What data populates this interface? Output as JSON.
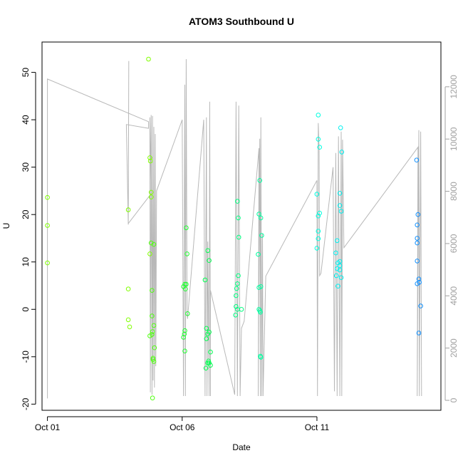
{
  "chart_data": {
    "type": "scatter",
    "title": "ATOM3 Southbound U",
    "xlabel": "Date",
    "ylabel": "U",
    "x_ticks": [
      "Oct 01",
      "Oct 06",
      "Oct 11"
    ],
    "x_tick_days": [
      1,
      6,
      11
    ],
    "xlim": [
      0.8,
      15.6
    ],
    "ylim": [
      -21.3,
      56.4
    ],
    "y_ticks": [
      -20,
      -10,
      0,
      10,
      20,
      30,
      40,
      50
    ],
    "y2_ticks": [
      0,
      2000,
      4000,
      6000,
      8000,
      10000,
      12000
    ],
    "y2_range": [
      -21,
      56.3
    ],
    "y2_to_y": {
      "scale": 0.005513,
      "offset": -19.2
    },
    "grid": false,
    "colors": {
      "green_early": "#80ff00",
      "green_mid": "#20ff20",
      "green_late": "#00ff60",
      "teal": "#00ffa0",
      "cyan": "#00ffe0",
      "sky": "#00e0ff",
      "blue": "#1090ff",
      "secondary_line": "#b8b8b8",
      "right_axis": "#a0a0a0"
    },
    "series": [
      {
        "color": "#80ff00",
        "points": [
          [
            1.0,
            23.6
          ],
          [
            1.0,
            17.7
          ],
          [
            1.0,
            9.8
          ],
          [
            4.0,
            21.0
          ],
          [
            4.0,
            4.3
          ],
          [
            4.0,
            -2.2
          ],
          [
            4.05,
            -3.7
          ],
          [
            4.75,
            52.8
          ],
          [
            4.8,
            32.0
          ],
          [
            4.82,
            31.3
          ],
          [
            4.85,
            24.7
          ],
          [
            4.85,
            23.7
          ],
          [
            4.8,
            11.7
          ]
        ]
      },
      {
        "color": "#50ff10",
        "points": [
          [
            4.85,
            14.0
          ],
          [
            4.95,
            13.7
          ],
          [
            4.88,
            4.0
          ],
          [
            4.88,
            -1.4
          ],
          [
            4.95,
            -3.4
          ],
          [
            4.9,
            -4.7
          ],
          [
            4.88,
            -5.3
          ],
          [
            4.8,
            -5.6
          ],
          [
            4.97,
            -8.1
          ],
          [
            4.92,
            -10.3
          ],
          [
            4.92,
            -10.6
          ],
          [
            4.95,
            -11.0
          ],
          [
            4.9,
            -18.7
          ]
        ]
      },
      {
        "color": "#20ff30",
        "points": [
          [
            6.15,
            17.2
          ],
          [
            6.18,
            11.7
          ],
          [
            6.1,
            5.3
          ],
          [
            6.15,
            5.3
          ],
          [
            6.05,
            4.8
          ],
          [
            6.12,
            4.3
          ],
          [
            6.2,
            -0.9
          ],
          [
            6.1,
            -4.5
          ],
          [
            6.08,
            -5.2
          ],
          [
            6.05,
            -5.9
          ],
          [
            6.1,
            -8.8
          ]
        ]
      },
      {
        "color": "#00ff50",
        "points": [
          [
            6.95,
            12.4
          ],
          [
            7.0,
            10.3
          ],
          [
            6.85,
            6.2
          ],
          [
            6.9,
            -4.0
          ],
          [
            7.0,
            -4.8
          ],
          [
            6.95,
            -5.2
          ],
          [
            6.9,
            -6.2
          ],
          [
            7.05,
            -9.0
          ],
          [
            6.98,
            -10.9
          ],
          [
            6.95,
            -11.3
          ],
          [
            7.0,
            -11.3
          ],
          [
            7.05,
            -11.8
          ],
          [
            6.88,
            -12.4
          ]
        ]
      },
      {
        "color": "#00ff80",
        "points": [
          [
            8.05,
            22.8
          ],
          [
            8.08,
            19.3
          ],
          [
            8.1,
            15.2
          ],
          [
            8.05,
            5.4
          ],
          [
            8.02,
            4.4
          ],
          [
            8.08,
            7.1
          ],
          [
            8.0,
            2.9
          ],
          [
            8.0,
            0.6
          ],
          [
            8.05,
            0.0
          ],
          [
            8.2,
            0.0
          ],
          [
            7.98,
            -1.2
          ]
        ]
      },
      {
        "color": "#00ffa0",
        "points": [
          [
            8.88,
            27.2
          ],
          [
            8.85,
            20.1
          ],
          [
            8.92,
            19.3
          ],
          [
            8.95,
            15.6
          ],
          [
            8.82,
            11.6
          ],
          [
            8.85,
            4.6
          ],
          [
            8.92,
            4.8
          ],
          [
            8.85,
            0.0
          ],
          [
            8.88,
            -0.3
          ],
          [
            8.9,
            -0.6
          ],
          [
            8.9,
            -9.9
          ],
          [
            8.92,
            -10.1
          ]
        ]
      },
      {
        "color": "#00ffe0",
        "points": [
          [
            11.05,
            41.0
          ],
          [
            11.05,
            35.9
          ],
          [
            11.1,
            34.2
          ],
          [
            11.0,
            24.3
          ],
          [
            11.1,
            20.3
          ],
          [
            11.05,
            19.7
          ],
          [
            11.05,
            16.5
          ],
          [
            11.05,
            14.9
          ],
          [
            11.0,
            12.9
          ]
        ]
      },
      {
        "color": "#00f0f0",
        "points": [
          [
            11.88,
            38.3
          ],
          [
            11.92,
            33.2
          ],
          [
            11.85,
            24.5
          ],
          [
            11.85,
            21.9
          ],
          [
            11.9,
            20.7
          ],
          [
            11.75,
            14.5
          ],
          [
            11.7,
            11.9
          ],
          [
            11.85,
            10.1
          ],
          [
            11.78,
            9.8
          ],
          [
            11.85,
            9.2
          ],
          [
            11.85,
            8.3
          ],
          [
            11.75,
            8.6
          ],
          [
            11.72,
            7.1
          ],
          [
            11.9,
            6.7
          ],
          [
            11.78,
            4.9
          ]
        ]
      },
      {
        "color": "#1090ff",
        "points": [
          [
            14.7,
            31.5
          ],
          [
            14.75,
            20.0
          ],
          [
            14.72,
            17.8
          ],
          [
            14.72,
            15.0
          ],
          [
            14.72,
            14.0
          ],
          [
            14.72,
            10.2
          ],
          [
            14.78,
            6.4
          ],
          [
            14.8,
            5.7
          ],
          [
            14.72,
            5.4
          ],
          [
            14.85,
            0.7
          ],
          [
            14.78,
            -5.0
          ]
        ]
      }
    ],
    "secondary_line": [
      [
        1.0,
        -18.8
      ],
      [
        1.0,
        48.6
      ],
      [
        4.75,
        39.6
      ],
      [
        4.75,
        38.2
      ],
      [
        3.93,
        39.0
      ],
      [
        4.0,
        17.9
      ],
      [
        4.02,
        52.4
      ],
      [
        4.0,
        18.1
      ],
      [
        4.85,
        24.4
      ],
      [
        4.8,
        40.5
      ],
      [
        4.82,
        -17.5
      ],
      [
        4.85,
        41.0
      ],
      [
        4.88,
        -18.0
      ],
      [
        4.9,
        40.8
      ],
      [
        4.92,
        -15.0
      ],
      [
        4.95,
        38.5
      ],
      [
        4.97,
        -16.5
      ],
      [
        5.0,
        37.0
      ],
      [
        5.02,
        -12.0
      ],
      [
        5.05,
        25.0
      ],
      [
        6.0,
        40.0
      ],
      [
        6.05,
        -18.3
      ],
      [
        6.1,
        47.4
      ],
      [
        6.12,
        -18.3
      ],
      [
        6.15,
        52.8
      ],
      [
        6.18,
        -1.0
      ],
      [
        6.2,
        -2.0
      ],
      [
        6.8,
        40.0
      ],
      [
        6.85,
        -18.3
      ],
      [
        6.9,
        40.5
      ],
      [
        6.92,
        -18.3
      ],
      [
        6.95,
        14.3
      ],
      [
        7.0,
        -18.3
      ],
      [
        7.02,
        43.8
      ],
      [
        7.05,
        -18.3
      ],
      [
        7.05,
        4.0
      ],
      [
        7.95,
        -18.0
      ],
      [
        8.0,
        43.8
      ],
      [
        8.05,
        -18.3
      ],
      [
        8.1,
        43.0
      ],
      [
        8.15,
        -18.3
      ],
      [
        8.2,
        -4.0
      ],
      [
        8.3,
        -2.5
      ],
      [
        8.85,
        34.0
      ],
      [
        8.82,
        -18.3
      ],
      [
        8.88,
        36.0
      ],
      [
        8.9,
        -18.3
      ],
      [
        8.92,
        40.5
      ],
      [
        8.95,
        -18.3
      ],
      [
        8.98,
        16.0
      ],
      [
        9.0,
        -18.3
      ],
      [
        9.1,
        7.0
      ],
      [
        11.0,
        27.2
      ],
      [
        11.02,
        -18.3
      ],
      [
        11.05,
        39.3
      ],
      [
        11.08,
        33.8
      ],
      [
        11.1,
        7.1
      ],
      [
        11.15,
        7.6
      ],
      [
        11.6,
        30.0
      ],
      [
        11.65,
        -17.3
      ],
      [
        11.7,
        33.0
      ],
      [
        11.75,
        -18.3
      ],
      [
        11.8,
        36.5
      ],
      [
        11.85,
        -18.3
      ],
      [
        11.9,
        37.5
      ],
      [
        11.92,
        -18.3
      ],
      [
        11.95,
        35.8
      ],
      [
        12.0,
        13.0
      ],
      [
        14.75,
        34.2
      ],
      [
        14.72,
        -18.3
      ],
      [
        14.78,
        37.8
      ],
      [
        14.8,
        -18.3
      ],
      [
        14.85,
        37.5
      ],
      [
        14.88,
        -18.3
      ]
    ]
  }
}
